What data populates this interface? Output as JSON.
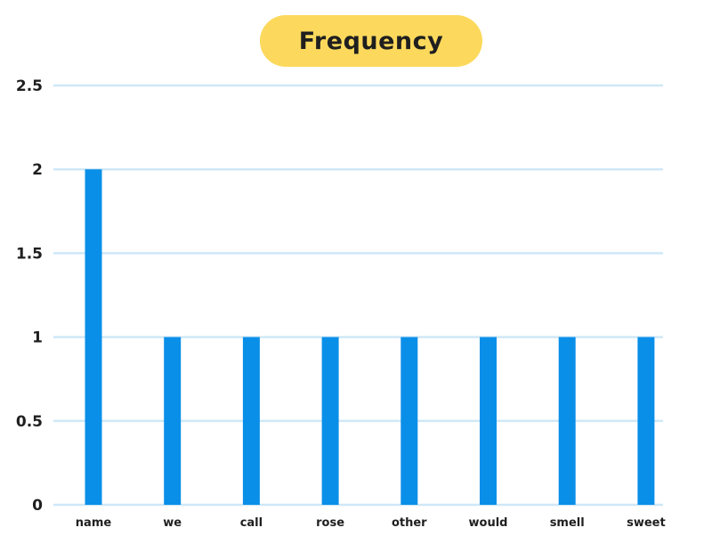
{
  "chart_data": {
    "type": "bar",
    "title": "Frequency",
    "categories": [
      "name",
      "we",
      "call",
      "rose",
      "other",
      "would",
      "smell",
      "sweet"
    ],
    "values": [
      2,
      1,
      1,
      1,
      1,
      1,
      1,
      1
    ],
    "xlabel": "",
    "ylabel": "",
    "ylim": [
      0,
      2.5
    ],
    "yticks": [
      "0",
      "0.5",
      "1",
      "1.5",
      "2",
      "2.5"
    ],
    "grid": true,
    "colors": {
      "bar": "#0a8fe8",
      "grid": "#cfe8f7",
      "title_background": "#fcd95c"
    }
  }
}
